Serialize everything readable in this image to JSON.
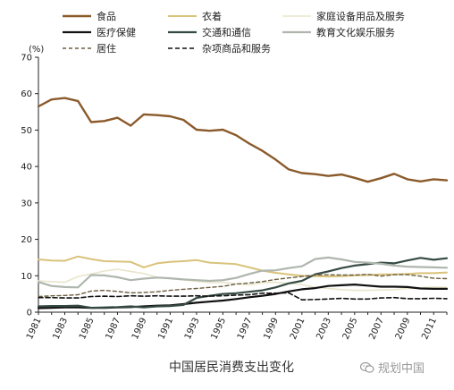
{
  "caption": "中国居民消费支出变化",
  "watermark": {
    "text": "规划中国",
    "icon": "wechat-icon"
  },
  "chart_data": {
    "type": "line",
    "title": "",
    "xlabel": "",
    "ylabel": "(%)",
    "ylim": [
      0,
      70
    ],
    "yticks": [
      0,
      10,
      20,
      30,
      40,
      50,
      60,
      70
    ],
    "xlim": [
      1981,
      2012
    ],
    "xticks": [
      "1981",
      "1983",
      "1985",
      "1987",
      "1989",
      "1991",
      "1993",
      "1995",
      "1997",
      "1999",
      "2001",
      "2003",
      "2005",
      "2007",
      "2009",
      "2011"
    ],
    "grid": false,
    "legend_position": "top",
    "x": [
      1981,
      1982,
      1983,
      1984,
      1985,
      1986,
      1987,
      1988,
      1989,
      1990,
      1991,
      1992,
      1993,
      1994,
      1995,
      1996,
      1997,
      1998,
      1999,
      2000,
      2001,
      2002,
      2003,
      2004,
      2005,
      2006,
      2007,
      2008,
      2009,
      2010,
      2011,
      2012
    ],
    "series": [
      {
        "name": "食品",
        "color": "#8B5A2B",
        "dash": "",
        "width": 2.4,
        "values": [
          56.5,
          58.4,
          58.8,
          58.0,
          52.2,
          52.5,
          53.4,
          51.2,
          54.3,
          54.1,
          53.8,
          52.8,
          50.1,
          49.8,
          50.1,
          48.6,
          46.3,
          44.3,
          41.9,
          39.2,
          38.2,
          37.9,
          37.4,
          37.8,
          36.9,
          35.8,
          36.8,
          38.0,
          36.5,
          35.9,
          36.5,
          36.2
        ]
      },
      {
        "name": "衣着",
        "color": "#D9C27A",
        "dash": "",
        "width": 2,
        "values": [
          14.5,
          14.2,
          14.1,
          15.3,
          14.6,
          14.0,
          13.9,
          13.8,
          12.3,
          13.4,
          13.8,
          14.0,
          14.3,
          13.6,
          13.4,
          13.2,
          12.3,
          11.4,
          10.8,
          10.4,
          10.0,
          9.9,
          9.8,
          9.9,
          10.1,
          10.2,
          10.4,
          10.4,
          10.5,
          10.7,
          10.7,
          10.9
        ]
      },
      {
        "name": "家庭设备用品及服务",
        "color": "#E8E6CC",
        "dash": "",
        "width": 1.6,
        "values": [
          8.6,
          8.4,
          8.2,
          9.8,
          10.5,
          11.3,
          11.8,
          11.2,
          10.6,
          9.6,
          9.2,
          8.9,
          8.5,
          8.1,
          8.2,
          7.8,
          7.5,
          8.1,
          8.2,
          7.9,
          7.6,
          6.8,
          6.5,
          6.2,
          6.0,
          6.0,
          6.1,
          6.2,
          6.5,
          6.7,
          6.9,
          6.8
        ]
      },
      {
        "name": "医疗保健",
        "color": "#111111",
        "dash": "",
        "width": 2.2,
        "values": [
          1.1,
          1.2,
          1.3,
          1.3,
          1.2,
          1.2,
          1.3,
          1.4,
          1.6,
          1.8,
          1.9,
          2.2,
          2.6,
          2.9,
          3.2,
          3.6,
          4.1,
          4.5,
          5.0,
          5.7,
          6.3,
          6.6,
          7.2,
          7.4,
          7.6,
          7.3,
          7.0,
          7.0,
          6.9,
          6.5,
          6.4,
          6.4
        ]
      },
      {
        "name": "交通和通信",
        "color": "#364A44",
        "dash": "",
        "width": 2.2,
        "values": [
          1.6,
          1.7,
          1.7,
          1.8,
          1.2,
          1.3,
          1.4,
          1.6,
          1.3,
          1.6,
          1.7,
          2.0,
          3.9,
          4.5,
          5.0,
          5.2,
          5.6,
          6.0,
          6.8,
          7.9,
          8.6,
          10.4,
          11.2,
          12.1,
          12.8,
          13.2,
          13.6,
          13.4,
          14.2,
          14.9,
          14.4,
          14.8
        ]
      },
      {
        "name": "教育文化娱乐服务",
        "color": "#AEB6AD",
        "dash": "",
        "width": 2.2,
        "values": [
          8.3,
          7.2,
          6.9,
          6.8,
          10.2,
          10.1,
          9.6,
          8.8,
          9.2,
          9.5,
          9.3,
          9.0,
          8.8,
          8.6,
          8.8,
          9.4,
          10.5,
          11.4,
          11.5,
          12.1,
          12.6,
          14.6,
          15.0,
          14.5,
          13.8,
          13.6,
          13.3,
          12.8,
          12.5,
          12.4,
          12.3,
          12.2
        ]
      },
      {
        "name": "居住",
        "color": "#6B5E40",
        "dash": "4 3",
        "width": 1.4,
        "values": [
          4.3,
          4.5,
          4.6,
          4.8,
          5.8,
          6.0,
          5.7,
          5.3,
          5.4,
          5.6,
          6.0,
          6.3,
          6.5,
          6.8,
          7.1,
          7.7,
          8.0,
          8.4,
          9.0,
          9.4,
          9.8,
          10.2,
          10.3,
          10.2,
          10.2,
          10.4,
          9.9,
          10.3,
          10.3,
          9.9,
          9.3,
          9.2
        ]
      },
      {
        "name": "杂项商品和服务",
        "color": "#111111",
        "dash": "5 3",
        "width": 1.6,
        "values": [
          4.0,
          4.0,
          3.9,
          3.9,
          4.3,
          4.4,
          4.3,
          4.5,
          4.4,
          4.5,
          4.4,
          4.4,
          4.5,
          4.4,
          4.5,
          4.7,
          4.8,
          5.2,
          5.2,
          5.3,
          3.4,
          3.5,
          3.6,
          3.8,
          3.6,
          3.6,
          3.9,
          4.0,
          3.7,
          3.7,
          3.8,
          3.7
        ]
      }
    ]
  }
}
